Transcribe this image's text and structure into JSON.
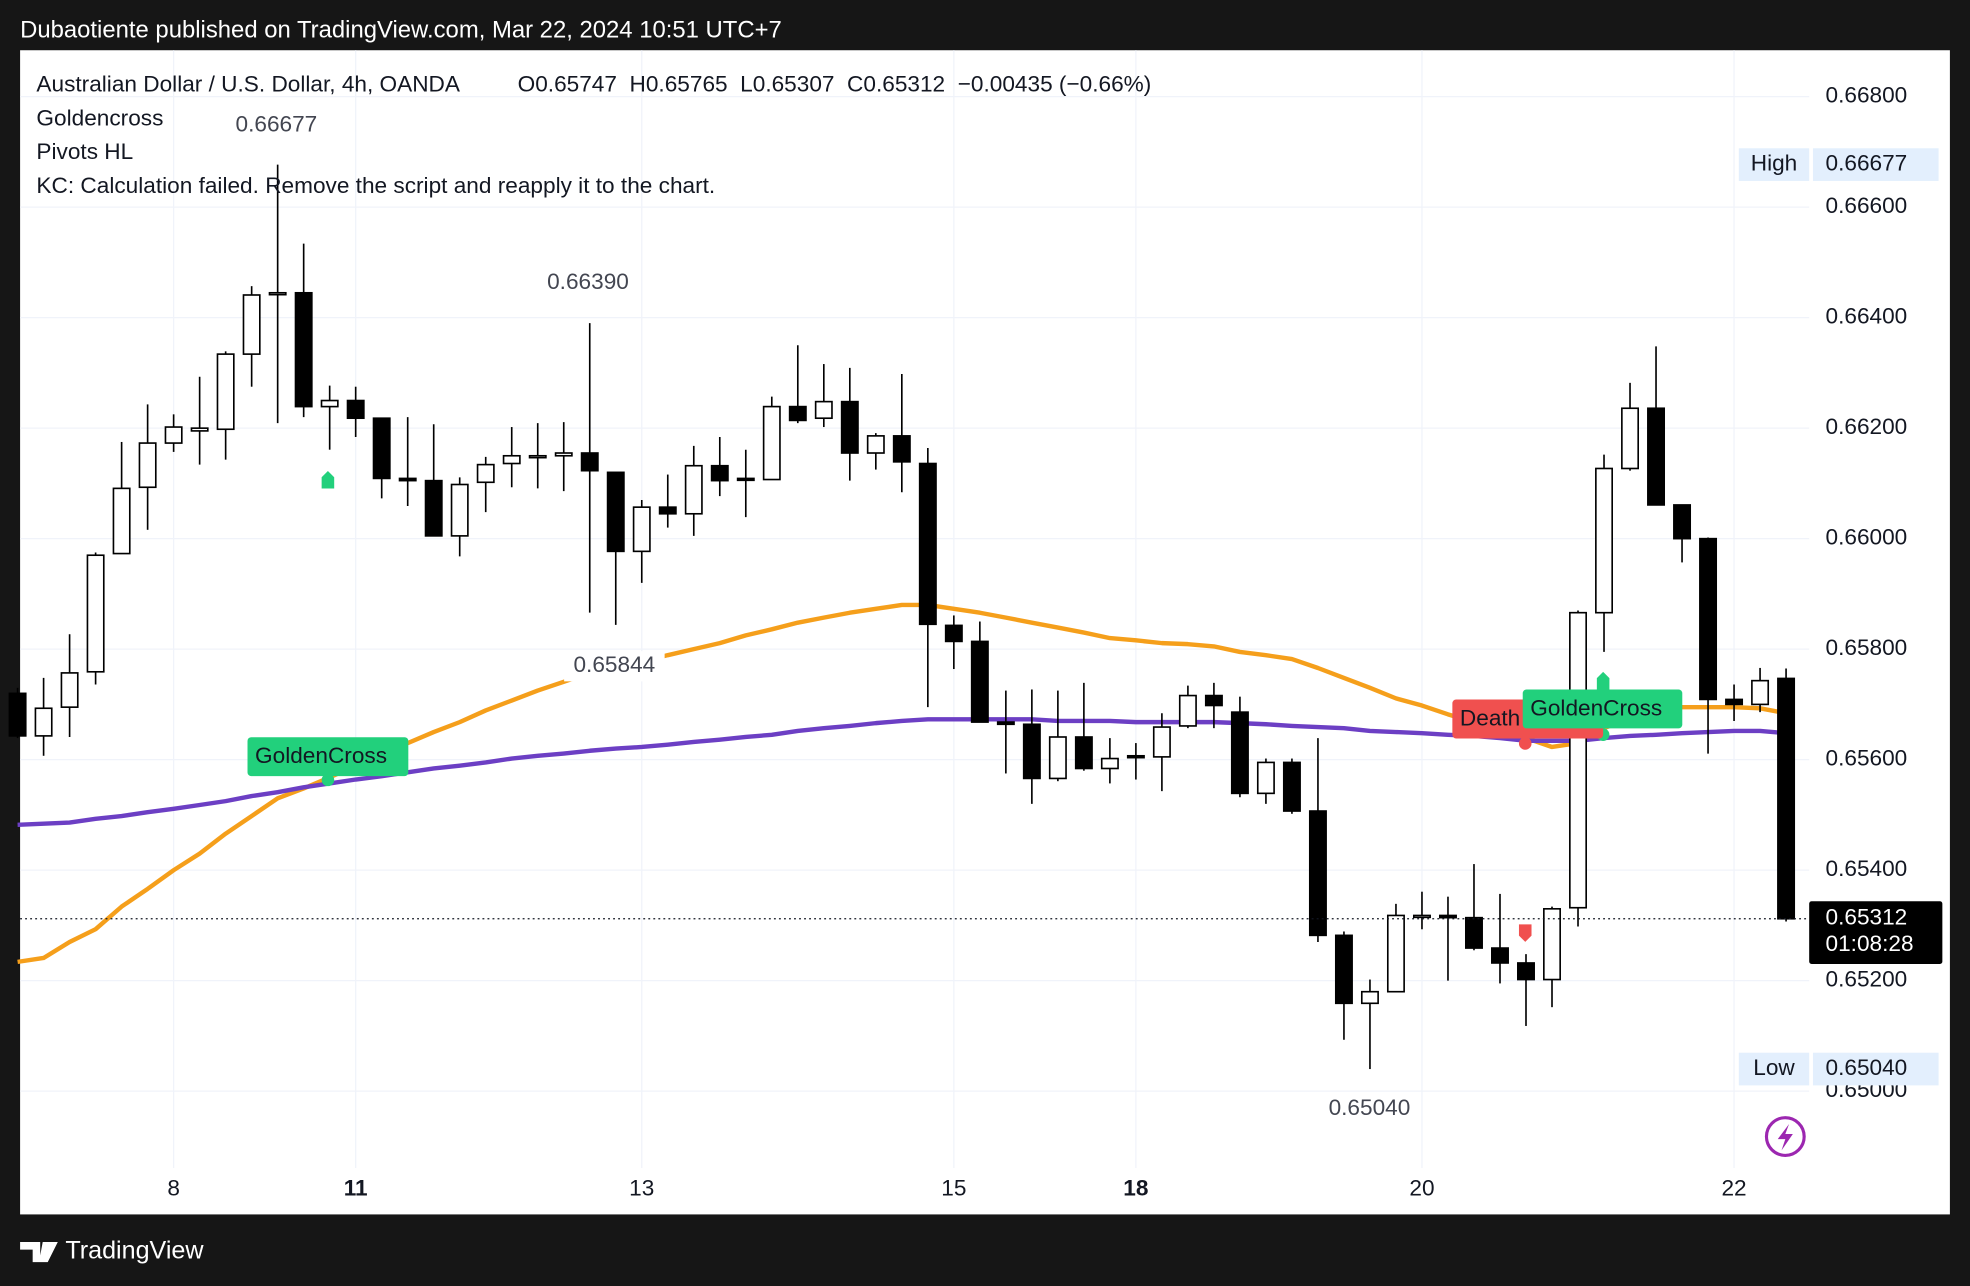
{
  "header": {
    "publisher": "Dubaotiente published on TradingView.com, Mar 22, 2024 10:51 UTC+7"
  },
  "legend": {
    "symbol": "Australian Dollar / U.S. Dollar, 4h, OANDA",
    "ohlc": "O0.65747  H0.65765  L0.65307  C0.65312  −0.00435 (−0.66%)",
    "indicators": [
      "Goldencross",
      "Pivots HL",
      "KC: Calculation failed. Remove the script and reapply it to the chart."
    ]
  },
  "chart_data": {
    "type": "candlestick",
    "categories": [
      null,
      null,
      null,
      null,
      null,
      null,
      "8",
      null,
      null,
      null,
      null,
      null,
      null,
      "11",
      null,
      null,
      null,
      null,
      null,
      null,
      null,
      null,
      null,
      null,
      "13",
      null,
      null,
      null,
      null,
      null,
      null,
      null,
      null,
      null,
      null,
      null,
      "15",
      null,
      null,
      null,
      null,
      null,
      null,
      "18",
      null,
      null,
      null,
      null,
      null,
      null,
      null,
      null,
      null,
      null,
      "20",
      null,
      null,
      null,
      null,
      null,
      null,
      null,
      null,
      null,
      null,
      null,
      "22",
      null,
      null
    ],
    "bold_categories": [
      13,
      43
    ],
    "open": [
      0.6572,
      0.65643,
      0.65695,
      0.65759,
      0.65973,
      0.66093,
      0.66173,
      0.66195,
      0.66198,
      0.66334,
      0.66443,
      0.66445,
      0.66239,
      0.6625,
      0.66218,
      0.66109,
      0.66105,
      0.66005,
      0.66102,
      0.66136,
      0.66148,
      0.6615,
      0.66155,
      0.6612,
      0.65977,
      0.66057,
      0.66045,
      0.66132,
      0.66109,
      0.66107,
      0.66239,
      0.66218,
      0.66248,
      0.66155,
      0.66186,
      0.66136,
      0.65843,
      0.65814,
      0.65668,
      0.65664,
      0.65566,
      0.65641,
      0.65584,
      0.65607,
      0.65605,
      0.65661,
      0.65716,
      0.65686,
      0.65539,
      0.65595,
      0.65507,
      0.65282,
      0.65159,
      0.6518,
      0.65316,
      0.65318,
      0.65314,
      0.65259,
      0.65232,
      0.65202,
      0.65332,
      0.65866,
      0.66127,
      0.66236,
      0.66061,
      0.66,
      0.65709,
      0.657,
      0.65747
    ],
    "high": [
      0.6573,
      0.65748,
      0.65827,
      0.65975,
      0.66175,
      0.66243,
      0.66225,
      0.66293,
      0.66339,
      0.66457,
      0.66677,
      0.66534,
      0.66277,
      0.66275,
      0.66218,
      0.6622,
      0.66207,
      0.66111,
      0.66148,
      0.66202,
      0.66209,
      0.66211,
      0.6639,
      0.6612,
      0.6607,
      0.66116,
      0.66168,
      0.66184,
      0.66161,
      0.66257,
      0.6635,
      0.66316,
      0.66309,
      0.66191,
      0.66298,
      0.66164,
      0.65861,
      0.6585,
      0.65725,
      0.65727,
      0.65725,
      0.65739,
      0.65639,
      0.6563,
      0.65684,
      0.65734,
      0.65739,
      0.65714,
      0.65602,
      0.65602,
      0.65639,
      0.65289,
      0.65202,
      0.65339,
      0.65361,
      0.65352,
      0.65411,
      0.65357,
      0.65248,
      0.65334,
      0.6587,
      0.66152,
      0.66282,
      0.66348,
      0.66061,
      0.66002,
      0.65736,
      0.65766,
      0.65765
    ],
    "low": [
      0.65639,
      0.65607,
      0.65641,
      0.65736,
      0.65973,
      0.66016,
      0.66157,
      0.66134,
      0.66143,
      0.66275,
      0.66209,
      0.6622,
      0.66161,
      0.66184,
      0.66073,
      0.66059,
      0.66005,
      0.65968,
      0.66048,
      0.66093,
      0.66091,
      0.66086,
      0.65866,
      0.65844,
      0.6592,
      0.6602,
      0.66005,
      0.66077,
      0.66039,
      0.66107,
      0.66209,
      0.66202,
      0.66105,
      0.66125,
      0.66084,
      0.65695,
      0.65764,
      0.65668,
      0.65575,
      0.6552,
      0.65561,
      0.6558,
      0.65557,
      0.65564,
      0.65543,
      0.65657,
      0.65657,
      0.65532,
      0.6552,
      0.65502,
      0.6527,
      0.65093,
      0.6504,
      0.6518,
      0.65293,
      0.652,
      0.65255,
      0.65195,
      0.65118,
      0.65152,
      0.65298,
      0.65795,
      0.66123,
      0.66061,
      0.65957,
      0.65611,
      0.6567,
      0.65686,
      0.65307
    ],
    "close": [
      0.65643,
      0.65693,
      0.65757,
      0.6597,
      0.66091,
      0.66173,
      0.66202,
      0.662,
      0.66334,
      0.66441,
      0.66445,
      0.66239,
      0.6625,
      0.66218,
      0.66109,
      0.66105,
      0.66005,
      0.66098,
      0.66134,
      0.6615,
      0.6615,
      0.66155,
      0.66123,
      0.65977,
      0.66057,
      0.66045,
      0.66132,
      0.66105,
      0.66107,
      0.66239,
      0.66214,
      0.66248,
      0.66155,
      0.66186,
      0.66139,
      0.65845,
      0.65814,
      0.65668,
      0.65664,
      0.65566,
      0.65641,
      0.65584,
      0.65602,
      0.65605,
      0.65659,
      0.65716,
      0.65698,
      0.65539,
      0.65595,
      0.65507,
      0.65282,
      0.65159,
      0.6518,
      0.65318,
      0.65318,
      0.65314,
      0.65259,
      0.65232,
      0.65202,
      0.6533,
      0.65866,
      0.66127,
      0.66236,
      0.66061,
      0.66,
      0.65709,
      0.657,
      0.65743,
      0.65312
    ],
    "up_color": "#ffffff",
    "down_color": "#000000",
    "lines": [
      {
        "color": "#f59f1b",
        "values": [
          0.65234,
          0.65241,
          0.6527,
          0.65293,
          0.65334,
          0.65366,
          0.654,
          0.6543,
          0.65466,
          0.65498,
          0.6553,
          0.65548,
          0.65568,
          0.65589,
          0.65614,
          0.6563,
          0.6565,
          0.65668,
          0.65689,
          0.65707,
          0.65725,
          0.65741,
          0.65757,
          0.65766,
          0.65777,
          0.65789,
          0.658,
          0.65811,
          0.65825,
          0.65836,
          0.65848,
          0.65857,
          0.65866,
          0.65873,
          0.6588,
          0.6588,
          0.65873,
          0.65866,
          0.65857,
          0.65848,
          0.65839,
          0.6583,
          0.6582,
          0.65816,
          0.65811,
          0.65809,
          0.65805,
          0.65795,
          0.65789,
          0.65782,
          0.65766,
          0.65748,
          0.6573,
          0.65711,
          0.65698,
          0.65682,
          0.65668,
          0.65655,
          0.65639,
          0.65623,
          0.6563,
          0.65657,
          0.65675,
          0.65691,
          0.65695,
          0.65695,
          0.65695,
          0.65693,
          0.65684
        ]
      },
      {
        "color": "#6c3fc4",
        "values": [
          0.65482,
          0.65484,
          0.65486,
          0.65493,
          0.65498,
          0.65505,
          0.65511,
          0.65518,
          0.65525,
          0.65534,
          0.65541,
          0.6555,
          0.65557,
          0.65564,
          0.6557,
          0.65577,
          0.65584,
          0.65589,
          0.65595,
          0.65602,
          0.65607,
          0.65611,
          0.65616,
          0.6562,
          0.65623,
          0.65627,
          0.65632,
          0.65636,
          0.65641,
          0.65645,
          0.65652,
          0.65657,
          0.65661,
          0.65666,
          0.6567,
          0.65673,
          0.65673,
          0.65673,
          0.65673,
          0.65673,
          0.6567,
          0.6567,
          0.6567,
          0.65668,
          0.65668,
          0.65668,
          0.65668,
          0.65666,
          0.65664,
          0.65661,
          0.65659,
          0.65657,
          0.65652,
          0.6565,
          0.65648,
          0.65645,
          0.65643,
          0.65639,
          0.65634,
          0.65634,
          0.65634,
          0.65639,
          0.65643,
          0.65645,
          0.65648,
          0.6565,
          0.65652,
          0.65652,
          0.65648
        ]
      }
    ],
    "ylim": [
      0.64861,
      0.66884
    ],
    "yticks": [
      {
        "value": 0.65,
        "label": "0.65000"
      },
      {
        "value": 0.652,
        "label": "0.65200"
      },
      {
        "value": 0.654,
        "label": "0.65400"
      },
      {
        "value": 0.656,
        "label": "0.65600"
      },
      {
        "value": 0.658,
        "label": "0.65800"
      },
      {
        "value": 0.66,
        "label": "0.66000"
      },
      {
        "value": 0.662,
        "label": "0.66200"
      },
      {
        "value": 0.664,
        "label": "0.66400"
      },
      {
        "value": 0.666,
        "label": "0.66600"
      },
      {
        "value": 0.668,
        "label": "0.66800"
      }
    ],
    "grid": true,
    "pivots": [
      {
        "value": 0.66677,
        "label": "0.66677"
      },
      {
        "value": 0.6639,
        "label": "0.66390"
      },
      {
        "value": 0.65844,
        "label": "0.65844"
      },
      {
        "value": 0.6504,
        "label": "0.65040"
      }
    ],
    "high_label": {
      "name": "High",
      "value": 0.66677,
      "label": "0.66677"
    },
    "low_label": {
      "name": "Low",
      "value": 0.6504,
      "label": "0.65040"
    },
    "last_price": {
      "value": 0.65312,
      "label": "0.65312",
      "countdown": "01:08:28"
    },
    "signals": [
      {
        "label": "GoldenCross",
        "color": "#22d07c"
      },
      {
        "label": "Death",
        "color": "#f0504f"
      },
      {
        "label": "GoldenCross",
        "color": "#22d07c"
      }
    ]
  },
  "footer": {
    "brand": "TradingView"
  }
}
